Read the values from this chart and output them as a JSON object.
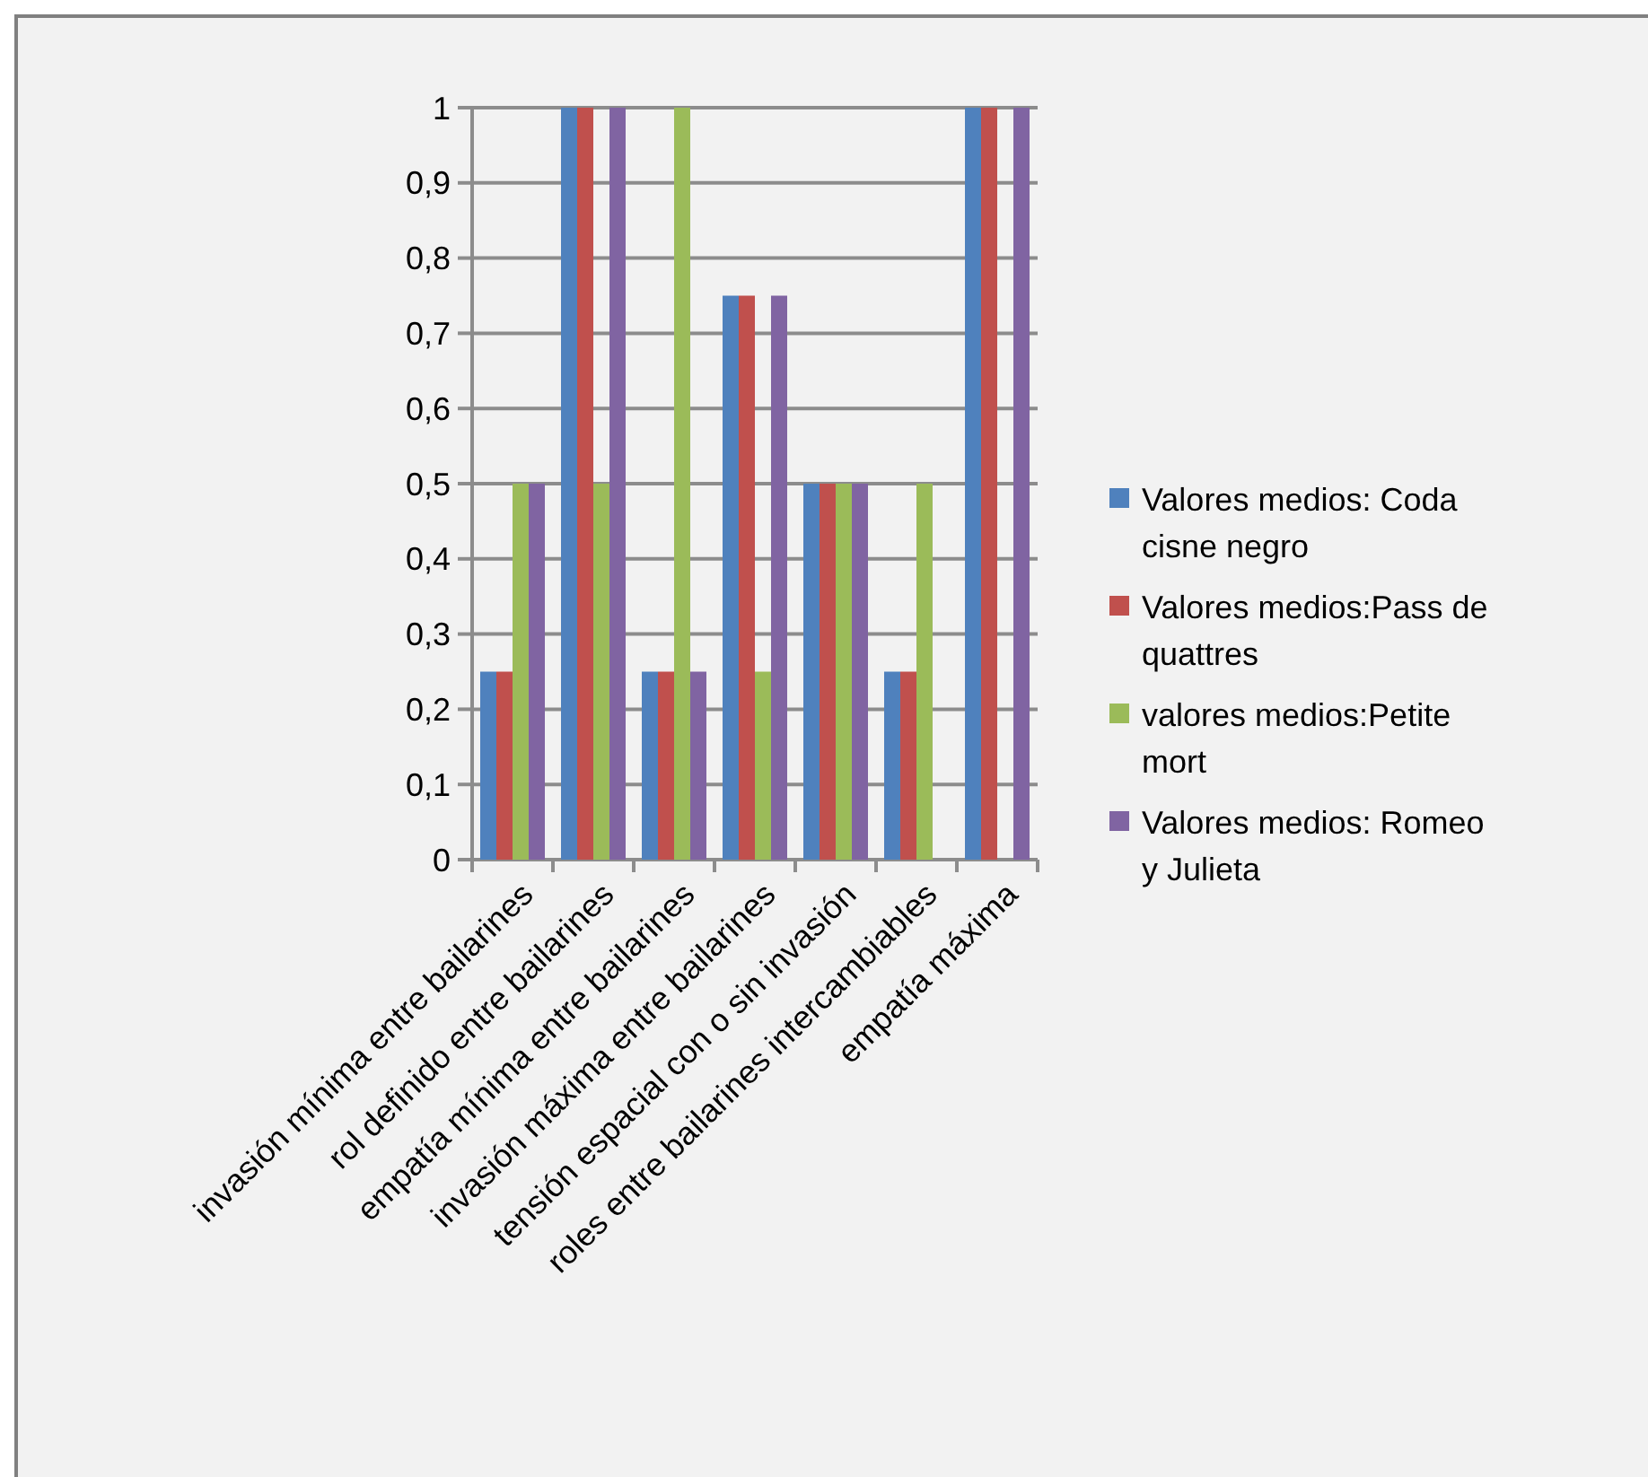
{
  "chart_data": {
    "type": "bar",
    "categories": [
      "invasión mínima entre bailarines",
      "rol definido entre bailarines",
      "empatía mínima entre bailarines",
      "invasión máxima entre bailarines",
      "tensión espacial con o sin invasión",
      "roles entre bailarines intercambiables",
      "empatía máxima"
    ],
    "series": [
      {
        "name": "Valores medios: Coda cisne negro",
        "color": "#4f81bd",
        "values": [
          0.25,
          1,
          0.25,
          0.75,
          0.5,
          0.25,
          1
        ]
      },
      {
        "name": "Valores medios:Pass de quattres",
        "color": "#c0504d",
        "values": [
          0.25,
          1,
          0.25,
          0.75,
          0.5,
          0.25,
          1
        ]
      },
      {
        "name": "valores medios:Petite mort",
        "color": "#9bbb59",
        "values": [
          0.5,
          0.5,
          1,
          0.25,
          0.5,
          0.5,
          0
        ]
      },
      {
        "name": "Valores medios: Romeo y Julieta",
        "color": "#8064a2",
        "values": [
          0.5,
          1,
          0.25,
          0.75,
          0.5,
          0,
          1
        ]
      }
    ],
    "ylim": [
      0,
      1
    ],
    "yticks": [
      0,
      {
        "value": 0.1,
        "label": "0,1"
      },
      {
        "value": 0.2,
        "label": "0,2"
      },
      {
        "value": 0.3,
        "label": "0,3"
      },
      {
        "value": 0.4,
        "label": "0,4"
      },
      {
        "value": 0.5,
        "label": "0,5"
      },
      {
        "value": 0.6,
        "label": "0,6"
      },
      {
        "value": 0.7,
        "label": "0,7"
      },
      {
        "value": 0.8,
        "label": "0,8"
      },
      {
        "value": 0.9,
        "label": "0,9"
      },
      1
    ],
    "grid": "y",
    "legend": "right"
  }
}
